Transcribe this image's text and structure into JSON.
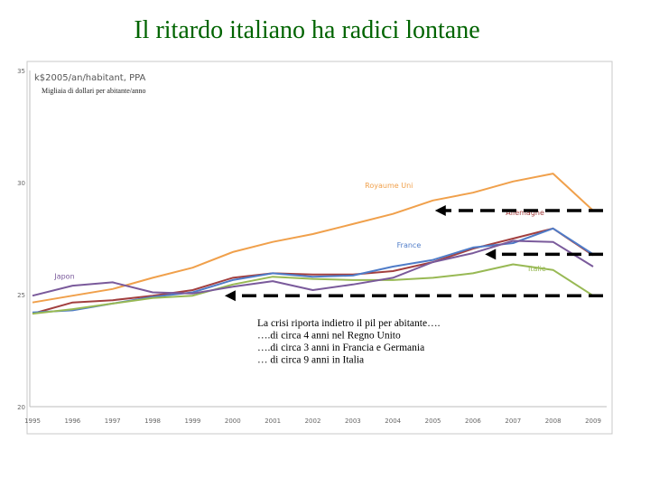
{
  "title": "Il ritardo italiano ha radici lontane",
  "chart_data": {
    "type": "line",
    "unit_label": "k$2005/an/habitant, PPA",
    "subtitle": "Migliaia di dollari per abitante/anno",
    "ylim": [
      20,
      35
    ],
    "yticks": [
      "20",
      "25",
      "30",
      "35"
    ],
    "x": [
      "1995",
      "1996",
      "1997",
      "1998",
      "1999",
      "2000",
      "2001",
      "2002",
      "2003",
      "2004",
      "2005",
      "2006",
      "2007",
      "2008",
      "2009"
    ],
    "series": [
      {
        "name": "Royaume Uni",
        "color": "#f0a04b",
        "values": [
          24.65,
          24.95,
          25.25,
          25.75,
          26.2,
          26.9,
          27.35,
          27.7,
          28.15,
          28.6,
          29.2,
          29.55,
          30.05,
          30.4,
          28.75
        ]
      },
      {
        "name": "Allemagne",
        "color": "#a23f3f",
        "values": [
          24.15,
          24.65,
          24.75,
          24.95,
          25.2,
          25.75,
          25.95,
          25.9,
          25.9,
          26.05,
          26.45,
          27.05,
          27.5,
          27.95,
          26.75
        ]
      },
      {
        "name": "France",
        "color": "#4f7cc8",
        "values": [
          24.2,
          24.3,
          24.6,
          24.9,
          25.1,
          25.65,
          25.95,
          25.8,
          25.85,
          26.25,
          26.55,
          27.1,
          27.3,
          27.95,
          26.8
        ]
      },
      {
        "name": "Italie",
        "color": "#98b954",
        "values": [
          24.15,
          24.35,
          24.6,
          24.85,
          24.95,
          25.45,
          25.8,
          25.7,
          25.65,
          25.65,
          25.75,
          25.95,
          26.35,
          26.1,
          24.95
        ]
      },
      {
        "name": "Japon",
        "color": "#7a5a9b",
        "values": [
          24.95,
          25.4,
          25.55,
          25.1,
          25.05,
          25.35,
          25.6,
          25.2,
          25.45,
          25.75,
          26.45,
          26.85,
          27.4,
          27.35,
          26.25
        ]
      }
    ],
    "annotation": [
      "La crisi riporta indietro il pil per abitante….",
      "….di circa 4 anni nel Regno Unito",
      "….di circa 3 anni in Francia e Germania",
      "… di circa 9 anni in Italia"
    ],
    "grid": false
  }
}
